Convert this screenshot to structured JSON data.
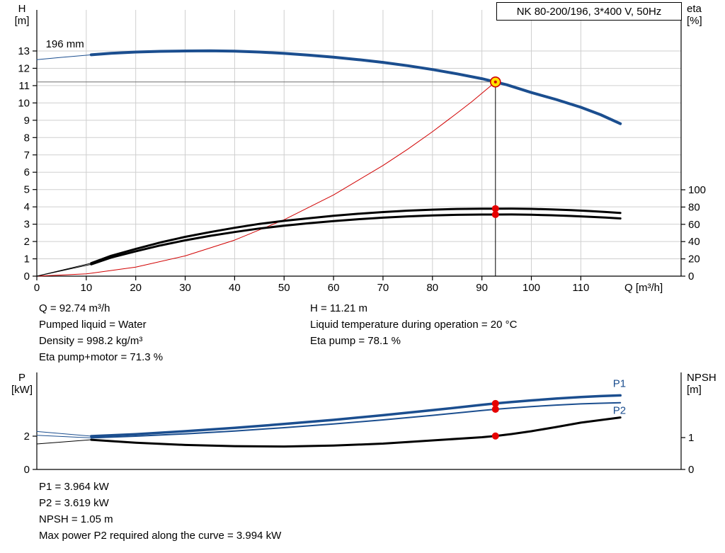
{
  "colors": {
    "blue": "#1b4e8f",
    "red": "#d10000",
    "black": "#000000",
    "dot": "#e60000",
    "yellow": "#ffe000",
    "grid": "#cfcfcf",
    "duty_gray": "#707070"
  },
  "title_box": {
    "label": "NK 80-200/196, 3*400 V, 50Hz"
  },
  "chart_data": [
    {
      "type": "line",
      "name": "qh-eta-chart",
      "grid": true,
      "x": {
        "label": "Q [m³/h]",
        "range": [
          0,
          130
        ],
        "ticks": [
          0,
          10,
          20,
          30,
          40,
          50,
          60,
          70,
          80,
          90,
          100,
          110
        ],
        "show_labels": true
      },
      "y_left": {
        "label": [
          "H",
          "[m]"
        ],
        "range": [
          0,
          14.5
        ],
        "ticks": [
          0,
          1,
          2,
          3,
          4,
          5,
          6,
          7,
          8,
          9,
          10,
          11,
          12,
          13
        ]
      },
      "y_right": {
        "label": [
          "eta",
          "[%]"
        ],
        "range": [
          0,
          100
        ],
        "ticks": [
          0,
          20,
          40,
          60,
          80,
          100
        ]
      },
      "series": [
        {
          "name": "head-curve-lead",
          "axis": "left",
          "color": "blue",
          "width": 1,
          "points": [
            [
              0,
              12.5
            ],
            [
              5,
              12.63
            ],
            [
              11,
              12.78
            ]
          ]
        },
        {
          "name": "head-curve-196mm",
          "axis": "left",
          "color": "blue",
          "width": 4,
          "points": [
            [
              11,
              12.78
            ],
            [
              15,
              12.87
            ],
            [
              20,
              12.94
            ],
            [
              25,
              12.98
            ],
            [
              30,
              13.0
            ],
            [
              35,
              13.01
            ],
            [
              40,
              12.99
            ],
            [
              45,
              12.94
            ],
            [
              50,
              12.86
            ],
            [
              55,
              12.76
            ],
            [
              60,
              12.64
            ],
            [
              65,
              12.5
            ],
            [
              70,
              12.34
            ],
            [
              75,
              12.15
            ],
            [
              80,
              11.93
            ],
            [
              85,
              11.68
            ],
            [
              90,
              11.4
            ],
            [
              92.74,
              11.21
            ],
            [
              95,
              11.05
            ],
            [
              100,
              10.6
            ],
            [
              105,
              10.2
            ],
            [
              110,
              9.75
            ],
            [
              114,
              9.32
            ],
            [
              118,
              8.8
            ]
          ]
        },
        {
          "name": "duty-parabola",
          "axis": "left",
          "color": "red",
          "width": 1,
          "points": [
            [
              0,
              0
            ],
            [
              10,
              0.13
            ],
            [
              20,
              0.52
            ],
            [
              30,
              1.17
            ],
            [
              40,
              2.08
            ],
            [
              50,
              3.26
            ],
            [
              60,
              4.69
            ],
            [
              70,
              6.39
            ],
            [
              75,
              7.33
            ],
            [
              80,
              8.34
            ],
            [
              85,
              9.42
            ],
            [
              88,
              10.08
            ],
            [
              90,
              10.56
            ],
            [
              92.74,
              11.21
            ]
          ]
        },
        {
          "name": "eta-pump-lead",
          "axis": "right",
          "color": "black",
          "width": 1,
          "points": [
            [
              0,
              0
            ],
            [
              11,
              15
            ]
          ]
        },
        {
          "name": "eta-pump-motor-lead",
          "axis": "right",
          "color": "black",
          "width": 1,
          "points": [
            [
              0,
              0
            ],
            [
              11,
              13.7
            ]
          ]
        },
        {
          "name": "eta-pump-curve",
          "axis": "right",
          "color": "black",
          "width": 3,
          "points": [
            [
              11,
              15
            ],
            [
              15,
              23.5
            ],
            [
              20,
              31.5
            ],
            [
              25,
              39
            ],
            [
              30,
              45.5
            ],
            [
              35,
              51
            ],
            [
              40,
              56
            ],
            [
              45,
              60.5
            ],
            [
              50,
              64
            ],
            [
              55,
              67
            ],
            [
              60,
              69.8
            ],
            [
              65,
              72.2
            ],
            [
              70,
              74.2
            ],
            [
              75,
              75.8
            ],
            [
              80,
              77
            ],
            [
              85,
              77.8
            ],
            [
              90,
              78.15
            ],
            [
              92.74,
              78.1
            ],
            [
              96,
              78.2
            ],
            [
              100,
              77.9
            ],
            [
              104,
              77.3
            ],
            [
              108,
              76.4
            ],
            [
              112,
              75.3
            ],
            [
              115,
              74.3
            ],
            [
              118,
              73.2
            ]
          ]
        },
        {
          "name": "eta-pump-motor-curve",
          "axis": "right",
          "color": "black",
          "width": 3,
          "points": [
            [
              11,
              13.7
            ],
            [
              15,
              21.5
            ],
            [
              20,
              28.8
            ],
            [
              25,
              35.6
            ],
            [
              30,
              41.5
            ],
            [
              35,
              46.6
            ],
            [
              40,
              51.1
            ],
            [
              45,
              55.2
            ],
            [
              50,
              58.4
            ],
            [
              55,
              61.2
            ],
            [
              60,
              63.7
            ],
            [
              65,
              65.9
            ],
            [
              70,
              67.7
            ],
            [
              75,
              69.2
            ],
            [
              80,
              70.3
            ],
            [
              85,
              71.0
            ],
            [
              90,
              71.3
            ],
            [
              92.74,
              71.3
            ],
            [
              96,
              71.4
            ],
            [
              100,
              71.1
            ],
            [
              104,
              70.5
            ],
            [
              108,
              69.7
            ],
            [
              112,
              68.7
            ],
            [
              115,
              67.8
            ],
            [
              118,
              66.8
            ]
          ]
        }
      ],
      "duty_point": {
        "q": 92.74,
        "h": 11.21
      },
      "markers": [
        {
          "name": "eta-pump-duty-dot",
          "axis": "right",
          "q": 92.74,
          "v": 78.1
        },
        {
          "name": "eta-pump-motor-duty-dot",
          "axis": "right",
          "q": 92.74,
          "v": 71.3
        }
      ],
      "annotations": [
        {
          "name": "impeller-diameter-label",
          "text": "196 mm",
          "q": 1.8,
          "v": 13.2,
          "axis": "left",
          "color": "black",
          "anchor": "start"
        }
      ]
    },
    {
      "type": "line",
      "name": "power-npsh-chart",
      "grid": false,
      "x": {
        "label": "",
        "range": [
          0,
          130
        ],
        "ticks": [],
        "show_labels": false
      },
      "y_left": {
        "label": [
          "P",
          "[kW]"
        ],
        "range": [
          0,
          5.7
        ],
        "ticks": [
          0,
          2
        ]
      },
      "y_right": {
        "label": [
          "NPSH",
          "[m]"
        ],
        "range": [
          0,
          3
        ],
        "ticks": [
          0,
          1
        ]
      },
      "series": [
        {
          "name": "p1-lead",
          "axis": "left",
          "color": "blue",
          "width": 1,
          "points": [
            [
              0,
              2.28
            ],
            [
              11,
              2.0
            ]
          ]
        },
        {
          "name": "p2-lead",
          "axis": "left",
          "color": "blue",
          "width": 1,
          "points": [
            [
              0,
              2.05
            ],
            [
              11,
              1.9
            ]
          ]
        },
        {
          "name": "npsh-lead",
          "axis": "right",
          "color": "black",
          "width": 1,
          "points": [
            [
              0,
              0.8
            ],
            [
              11,
              0.93
            ]
          ]
        },
        {
          "name": "p1-curve",
          "axis": "left",
          "color": "blue",
          "width": 3.5,
          "points": [
            [
              11,
              2.0
            ],
            [
              20,
              2.12
            ],
            [
              30,
              2.3
            ],
            [
              40,
              2.5
            ],
            [
              50,
              2.73
            ],
            [
              60,
              2.98
            ],
            [
              70,
              3.26
            ],
            [
              80,
              3.56
            ],
            [
              90,
              3.88
            ],
            [
              92.74,
              3.964
            ],
            [
              96,
              4.05
            ],
            [
              100,
              4.15
            ],
            [
              105,
              4.26
            ],
            [
              110,
              4.35
            ],
            [
              114,
              4.41
            ],
            [
              118,
              4.45
            ]
          ]
        },
        {
          "name": "p2-curve",
          "axis": "left",
          "color": "blue",
          "width": 2,
          "points": [
            [
              11,
              1.9
            ],
            [
              20,
              2.0
            ],
            [
              30,
              2.14
            ],
            [
              40,
              2.31
            ],
            [
              50,
              2.51
            ],
            [
              60,
              2.73
            ],
            [
              70,
              2.98
            ],
            [
              80,
              3.25
            ],
            [
              90,
              3.54
            ],
            [
              92.74,
              3.619
            ],
            [
              96,
              3.69
            ],
            [
              100,
              3.78
            ],
            [
              105,
              3.87
            ],
            [
              110,
              3.94
            ],
            [
              114,
              3.98
            ],
            [
              118,
              4.01
            ]
          ]
        },
        {
          "name": "npsh-curve",
          "axis": "right",
          "color": "black",
          "width": 3,
          "points": [
            [
              11,
              0.93
            ],
            [
              20,
              0.84
            ],
            [
              30,
              0.77
            ],
            [
              40,
              0.73
            ],
            [
              50,
              0.72
            ],
            [
              60,
              0.75
            ],
            [
              70,
              0.81
            ],
            [
              80,
              0.91
            ],
            [
              90,
              1.01
            ],
            [
              92.74,
              1.05
            ],
            [
              96,
              1.11
            ],
            [
              100,
              1.2
            ],
            [
              105,
              1.33
            ],
            [
              110,
              1.47
            ],
            [
              114,
              1.55
            ],
            [
              118,
              1.63
            ]
          ]
        }
      ],
      "markers": [
        {
          "name": "p1-duty-dot",
          "axis": "left",
          "q": 92.74,
          "v": 3.964
        },
        {
          "name": "p2-duty-dot",
          "axis": "left",
          "q": 92.74,
          "v": 3.619
        },
        {
          "name": "npsh-duty-dot",
          "axis": "right",
          "q": 92.74,
          "v": 1.05
        }
      ],
      "annotations": [
        {
          "name": "p1-curve-label",
          "text": "P1",
          "q": 116.5,
          "v": 4.95,
          "axis": "left",
          "color": "blue",
          "anchor": "start"
        },
        {
          "name": "p2-curve-label",
          "text": "P2",
          "q": 116.5,
          "v": 3.35,
          "axis": "left",
          "color": "blue",
          "anchor": "start"
        }
      ]
    }
  ],
  "info_top": {
    "left": [
      "Q = 92.74 m³/h",
      "Pumped liquid = Water",
      "Density = 998.2 kg/m³",
      "Eta pump+motor = 71.3 %"
    ],
    "right": [
      "H = 11.21 m",
      "Liquid temperature during operation = 20 °C",
      "Eta pump = 78.1 %"
    ]
  },
  "info_bottom": [
    "P1 = 3.964 kW",
    "P2 = 3.619 kW",
    "NPSH = 1.05 m",
    "Max power P2 required along the curve = 3.994 kW"
  ]
}
